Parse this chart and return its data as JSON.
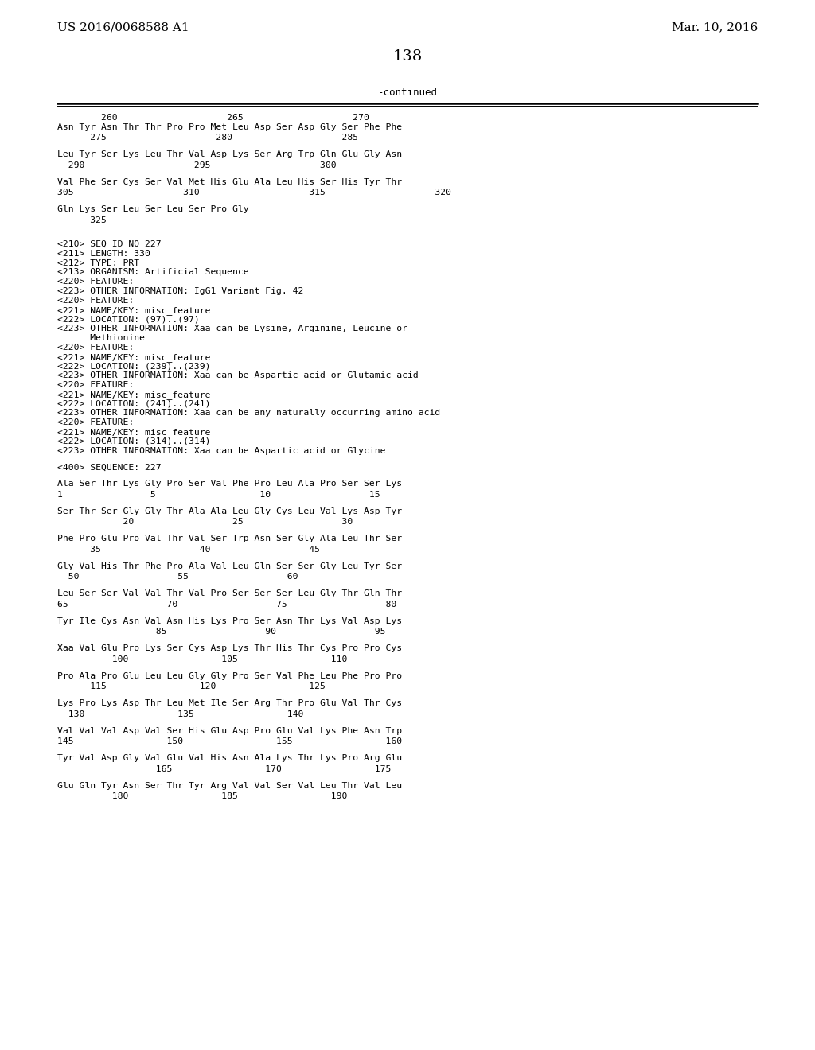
{
  "header_left": "US 2016/0068588 A1",
  "header_right": "Mar. 10, 2016",
  "page_number": "138",
  "continued_label": "-continued",
  "background_color": "#ffffff",
  "text_color": "#000000",
  "lines": [
    {
      "type": "ruler",
      "text": "        260                    265                    270"
    },
    {
      "type": "seq",
      "text": "Asn Tyr Asn Thr Thr Pro Pro Met Leu Asp Ser Asp Gly Ser Phe Phe"
    },
    {
      "type": "pos",
      "text": "      275                    280                    285"
    },
    {
      "type": "blank"
    },
    {
      "type": "seq",
      "text": "Leu Tyr Ser Lys Leu Thr Val Asp Lys Ser Arg Trp Gln Glu Gly Asn"
    },
    {
      "type": "pos",
      "text": "  290                    295                    300"
    },
    {
      "type": "blank"
    },
    {
      "type": "seq",
      "text": "Val Phe Ser Cys Ser Val Met His Glu Ala Leu His Ser His Tyr Thr"
    },
    {
      "type": "pos",
      "text": "305                    310                    315                    320"
    },
    {
      "type": "blank"
    },
    {
      "type": "seq",
      "text": "Gln Lys Ser Leu Ser Leu Ser Pro Gly"
    },
    {
      "type": "pos",
      "text": "      325"
    },
    {
      "type": "blank"
    },
    {
      "type": "blank"
    },
    {
      "type": "meta",
      "text": "<210> SEQ ID NO 227"
    },
    {
      "type": "meta",
      "text": "<211> LENGTH: 330"
    },
    {
      "type": "meta",
      "text": "<212> TYPE: PRT"
    },
    {
      "type": "meta",
      "text": "<213> ORGANISM: Artificial Sequence"
    },
    {
      "type": "meta",
      "text": "<220> FEATURE:"
    },
    {
      "type": "meta",
      "text": "<223> OTHER INFORMATION: IgG1 Variant Fig. 42"
    },
    {
      "type": "meta",
      "text": "<220> FEATURE:"
    },
    {
      "type": "meta",
      "text": "<221> NAME/KEY: misc_feature"
    },
    {
      "type": "meta",
      "text": "<222> LOCATION: (97)..(97)"
    },
    {
      "type": "meta",
      "text": "<223> OTHER INFORMATION: Xaa can be Lysine, Arginine, Leucine or"
    },
    {
      "type": "meta",
      "text": "      Methionine"
    },
    {
      "type": "meta",
      "text": "<220> FEATURE:"
    },
    {
      "type": "meta",
      "text": "<221> NAME/KEY: misc_feature"
    },
    {
      "type": "meta",
      "text": "<222> LOCATION: (239)..(239)"
    },
    {
      "type": "meta",
      "text": "<223> OTHER INFORMATION: Xaa can be Aspartic acid or Glutamic acid"
    },
    {
      "type": "meta",
      "text": "<220> FEATURE:"
    },
    {
      "type": "meta",
      "text": "<221> NAME/KEY: misc_feature"
    },
    {
      "type": "meta",
      "text": "<222> LOCATION: (241)..(241)"
    },
    {
      "type": "meta",
      "text": "<223> OTHER INFORMATION: Xaa can be any naturally occurring amino acid"
    },
    {
      "type": "meta",
      "text": "<220> FEATURE:"
    },
    {
      "type": "meta",
      "text": "<221> NAME/KEY: misc_feature"
    },
    {
      "type": "meta",
      "text": "<222> LOCATION: (314)..(314)"
    },
    {
      "type": "meta",
      "text": "<223> OTHER INFORMATION: Xaa can be Aspartic acid or Glycine"
    },
    {
      "type": "blank"
    },
    {
      "type": "meta",
      "text": "<400> SEQUENCE: 227"
    },
    {
      "type": "blank"
    },
    {
      "type": "seq",
      "text": "Ala Ser Thr Lys Gly Pro Ser Val Phe Pro Leu Ala Pro Ser Ser Lys"
    },
    {
      "type": "pos",
      "text": "1                5                   10                  15"
    },
    {
      "type": "blank"
    },
    {
      "type": "seq",
      "text": "Ser Thr Ser Gly Gly Thr Ala Ala Leu Gly Cys Leu Val Lys Asp Tyr"
    },
    {
      "type": "pos",
      "text": "            20                  25                  30"
    },
    {
      "type": "blank"
    },
    {
      "type": "seq",
      "text": "Phe Pro Glu Pro Val Thr Val Ser Trp Asn Ser Gly Ala Leu Thr Ser"
    },
    {
      "type": "pos",
      "text": "      35                  40                  45"
    },
    {
      "type": "blank"
    },
    {
      "type": "seq",
      "text": "Gly Val His Thr Phe Pro Ala Val Leu Gln Ser Ser Gly Leu Tyr Ser"
    },
    {
      "type": "pos",
      "text": "  50                  55                  60"
    },
    {
      "type": "blank"
    },
    {
      "type": "seq",
      "text": "Leu Ser Ser Val Val Thr Val Pro Ser Ser Ser Leu Gly Thr Gln Thr"
    },
    {
      "type": "pos",
      "text": "65                  70                  75                  80"
    },
    {
      "type": "blank"
    },
    {
      "type": "seq",
      "text": "Tyr Ile Cys Asn Val Asn His Lys Pro Ser Asn Thr Lys Val Asp Lys"
    },
    {
      "type": "pos",
      "text": "                  85                  90                  95"
    },
    {
      "type": "blank"
    },
    {
      "type": "seq",
      "text": "Xaa Val Glu Pro Lys Ser Cys Asp Lys Thr His Thr Cys Pro Pro Cys"
    },
    {
      "type": "pos",
      "text": "          100                 105                 110"
    },
    {
      "type": "blank"
    },
    {
      "type": "seq",
      "text": "Pro Ala Pro Glu Leu Leu Gly Gly Pro Ser Val Phe Leu Phe Pro Pro"
    },
    {
      "type": "pos",
      "text": "      115                 120                 125"
    },
    {
      "type": "blank"
    },
    {
      "type": "seq",
      "text": "Lys Pro Lys Asp Thr Leu Met Ile Ser Arg Thr Pro Glu Val Thr Cys"
    },
    {
      "type": "pos",
      "text": "  130                 135                 140"
    },
    {
      "type": "blank"
    },
    {
      "type": "seq",
      "text": "Val Val Val Asp Val Ser His Glu Asp Pro Glu Val Lys Phe Asn Trp"
    },
    {
      "type": "pos",
      "text": "145                 150                 155                 160"
    },
    {
      "type": "blank"
    },
    {
      "type": "seq",
      "text": "Tyr Val Asp Gly Val Glu Val His Asn Ala Lys Thr Lys Pro Arg Glu"
    },
    {
      "type": "pos",
      "text": "                  165                 170                 175"
    },
    {
      "type": "blank"
    },
    {
      "type": "seq",
      "text": "Glu Gln Tyr Asn Ser Thr Tyr Arg Val Val Ser Val Leu Thr Val Leu"
    },
    {
      "type": "pos",
      "text": "          180                 185                 190"
    }
  ]
}
